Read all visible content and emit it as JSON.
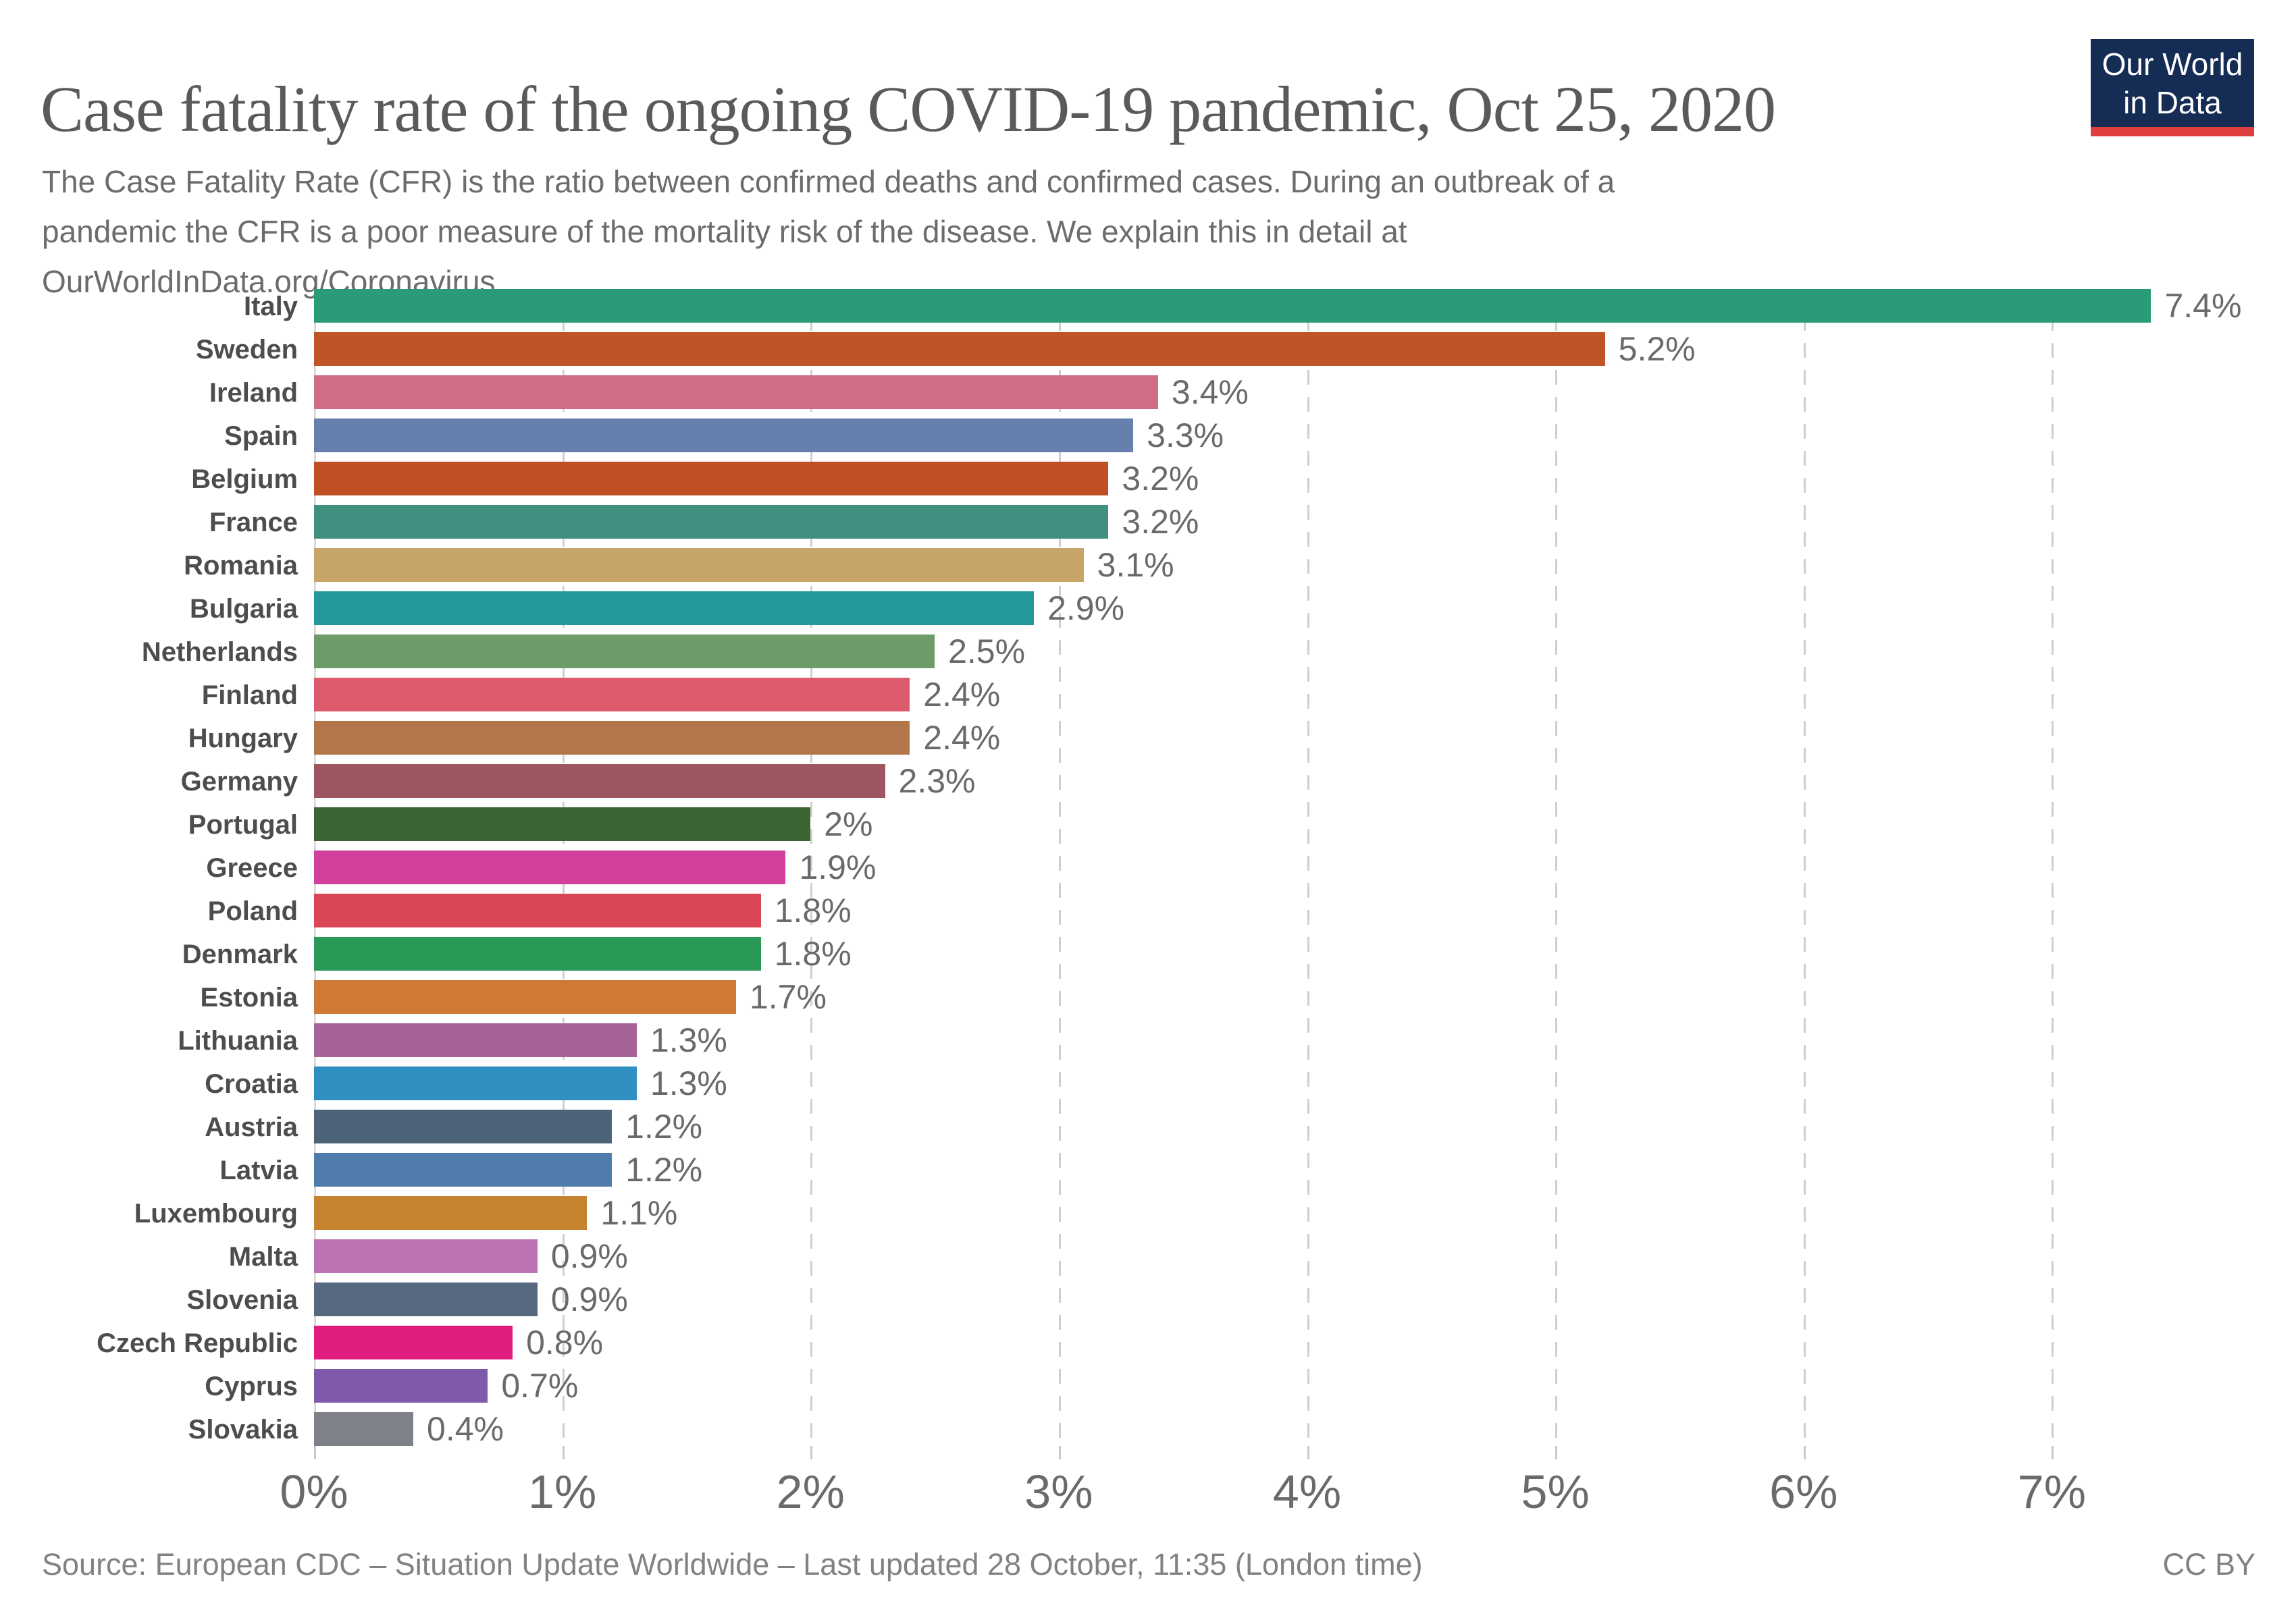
{
  "header": {
    "title": "Case fatality rate of the ongoing COVID-19 pandemic, Oct 25, 2020",
    "subtitle_line1": "The Case Fatality Rate (CFR) is the ratio between confirmed deaths and confirmed cases. During an outbreak of a",
    "subtitle_line2": "pandemic the CFR is a poor measure of the mortality risk of the disease. We explain this in detail at",
    "subtitle_link": "OurWorldInData.org/Coronavirus",
    "logo": {
      "line1": "Our World",
      "line2": "in Data",
      "background": "#152C54",
      "accent": "#E03E3E"
    }
  },
  "chart_data": {
    "type": "bar",
    "orientation": "horizontal",
    "unit": "%",
    "title": "Case fatality rate of the ongoing COVID-19 pandemic, Oct 25, 2020",
    "xlabel": "",
    "ylabel": "",
    "xlim": [
      0,
      7.97
    ],
    "grid": "dashed-vertical",
    "x_ticks": [
      "0%",
      "1%",
      "2%",
      "3%",
      "4%",
      "5%",
      "6%",
      "7%"
    ],
    "x_tick_values": [
      0,
      1,
      2,
      3,
      4,
      5,
      6,
      7
    ],
    "categories": [
      "Italy",
      "Sweden",
      "Ireland",
      "Spain",
      "Belgium",
      "France",
      "Romania",
      "Bulgaria",
      "Netherlands",
      "Finland",
      "Hungary",
      "Germany",
      "Portugal",
      "Greece",
      "Poland",
      "Denmark",
      "Estonia",
      "Lithuania",
      "Croatia",
      "Austria",
      "Latvia",
      "Luxembourg",
      "Malta",
      "Slovenia",
      "Czech Republic",
      "Cyprus",
      "Slovakia"
    ],
    "values": [
      7.4,
      5.2,
      3.4,
      3.3,
      3.2,
      3.2,
      3.1,
      2.9,
      2.5,
      2.4,
      2.4,
      2.3,
      2.0,
      1.9,
      1.8,
      1.8,
      1.7,
      1.3,
      1.3,
      1.2,
      1.2,
      1.1,
      0.9,
      0.9,
      0.8,
      0.7,
      0.4
    ],
    "value_labels": [
      "7.4%",
      "5.2%",
      "3.4%",
      "3.3%",
      "3.2%",
      "3.2%",
      "3.1%",
      "2.9%",
      "2.5%",
      "2.4%",
      "2.4%",
      "2.3%",
      "2%",
      "1.9%",
      "1.8%",
      "1.8%",
      "1.7%",
      "1.3%",
      "1.3%",
      "1.2%",
      "1.2%",
      "1.1%",
      "0.9%",
      "0.9%",
      "0.8%",
      "0.7%",
      "0.4%"
    ],
    "colors": [
      "#2A9B78",
      "#BF5426",
      "#CD6E84",
      "#667FAD",
      "#C05024",
      "#408F80",
      "#C7A468",
      "#24999B",
      "#6D9C68",
      "#DD5B6D",
      "#B3764B",
      "#9D5560",
      "#3D6433",
      "#D2409D",
      "#DA4656",
      "#2A9857",
      "#CE7A36",
      "#A56397",
      "#2F8FC0",
      "#4C6378",
      "#507CAC",
      "#C5832F",
      "#BC73B3",
      "#56697E",
      "#E01D7D",
      "#7F59AB",
      "#7E8187"
    ],
    "legend": "none"
  },
  "footer": {
    "source": "Source: European CDC – Situation Update Worldwide – Last updated 28 October, 11:35 (London time)",
    "license": "CC BY"
  }
}
